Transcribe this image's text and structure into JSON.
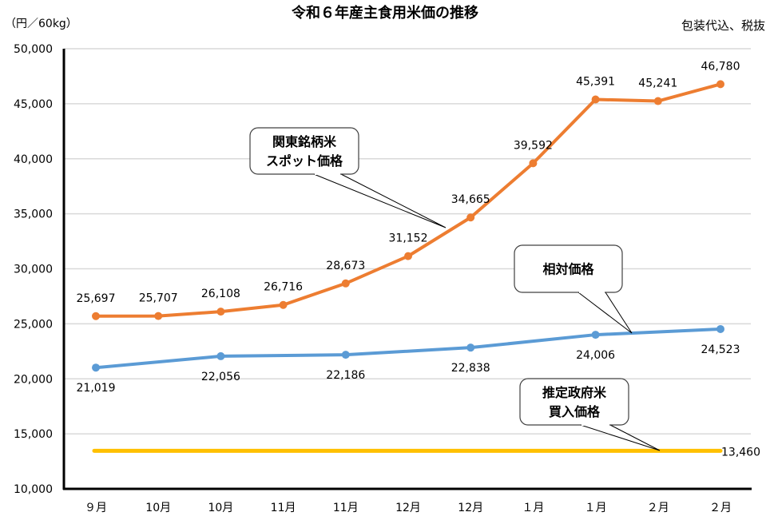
{
  "chart_data": {
    "type": "line",
    "title": "令和６年産主食用米価の推移",
    "ylabel": "（円／60kg）",
    "note": "包装代込、税抜",
    "ylim": [
      10000,
      50000
    ],
    "yticks": [
      10000,
      15000,
      20000,
      25000,
      30000,
      35000,
      40000,
      45000,
      50000
    ],
    "ytick_labels": [
      "10,000",
      "15,000",
      "20,000",
      "25,000",
      "30,000",
      "35,000",
      "40,000",
      "45,000",
      "50,000"
    ],
    "grid": true,
    "categories": [
      "９月",
      "10月",
      "10月",
      "11月",
      "11月",
      "12月",
      "12月",
      "１月",
      "１月",
      "２月",
      "２月"
    ],
    "series": [
      {
        "name": "関東銘柄米スポット価格",
        "callout": [
          "関東銘柄米",
          "スポット価格"
        ],
        "color": "#ED7D31",
        "values": [
          25697,
          25707,
          26108,
          26716,
          28673,
          31152,
          34665,
          39592,
          45391,
          45241,
          46780
        ],
        "labels": [
          "25,697",
          "25,707",
          "26,108",
          "26,716",
          "28,673",
          "31,152",
          "34,665",
          "39,592",
          "45,391",
          "45,241",
          "46,780"
        ]
      },
      {
        "name": "相対価格",
        "callout": [
          "相対価格"
        ],
        "color": "#5B9BD5",
        "values": [
          21019,
          null,
          22056,
          null,
          22186,
          null,
          22838,
          null,
          24006,
          null,
          24523
        ],
        "labels": [
          "21,019",
          null,
          "22,056",
          null,
          "22,186",
          null,
          "22,838",
          null,
          "24,006",
          null,
          "24,523"
        ]
      },
      {
        "name": "推定政府米買入価格",
        "callout": [
          "推定政府米",
          "買入価格"
        ],
        "color": "#FFC000",
        "values": [
          13460,
          13460,
          13460,
          13460,
          13460,
          13460,
          13460,
          13460,
          13460,
          13460,
          13460
        ],
        "end_label": "13,460"
      }
    ]
  }
}
